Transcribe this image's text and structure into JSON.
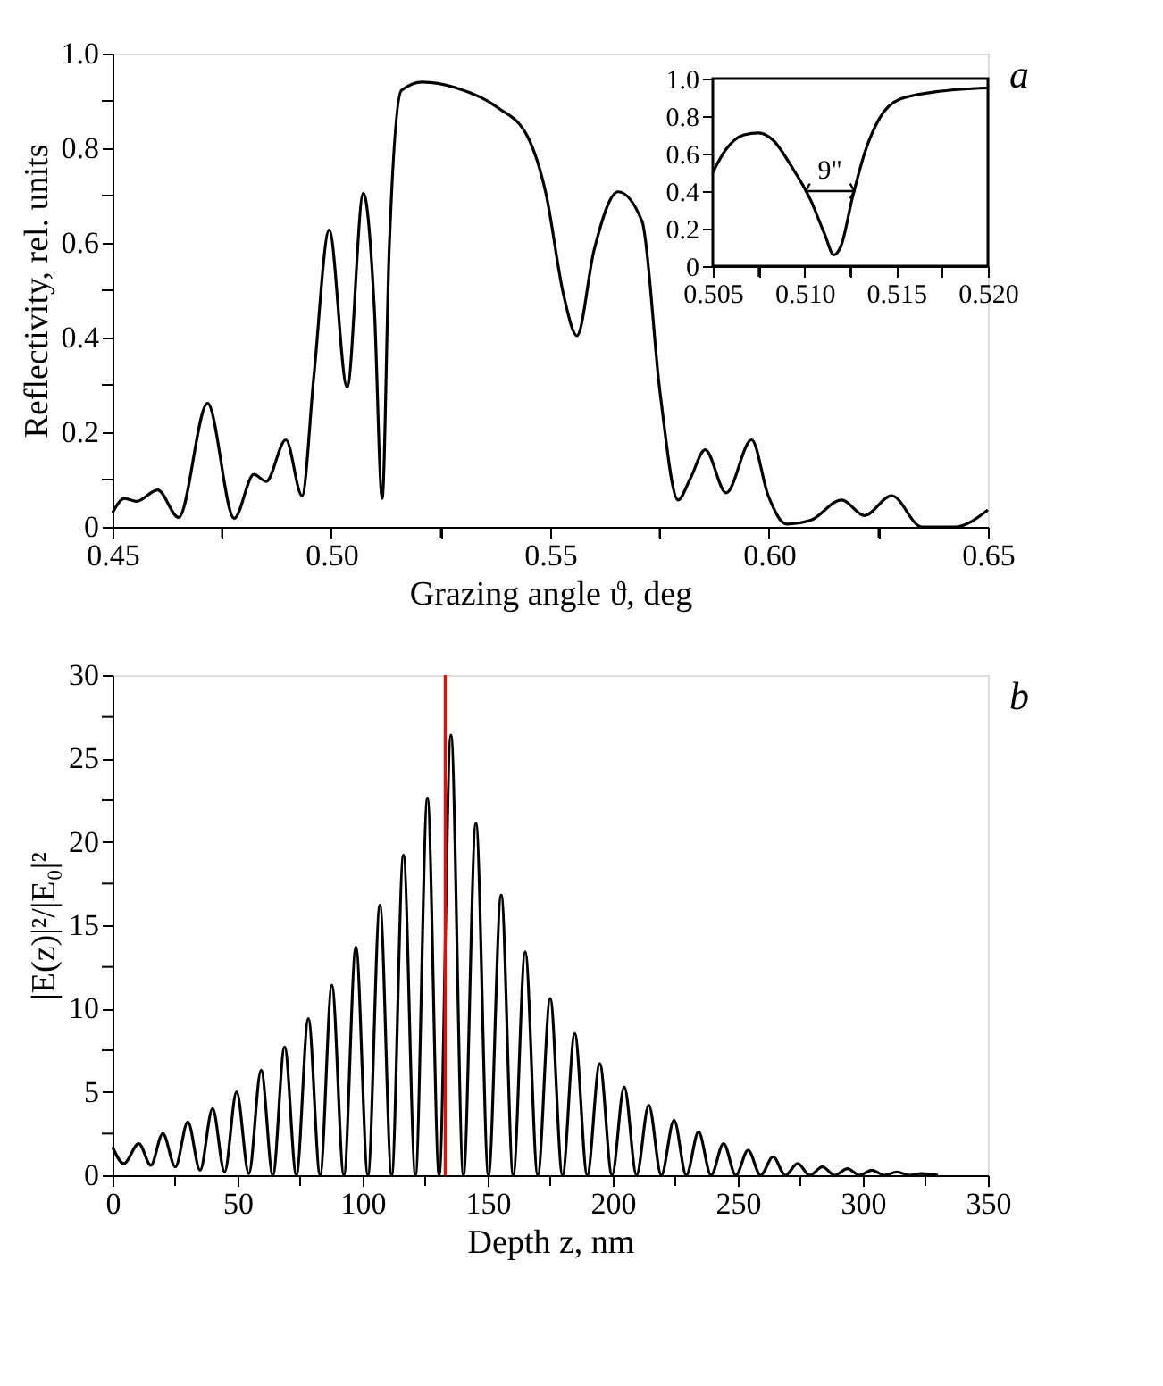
{
  "chart_data": [
    {
      "type": "line",
      "xlabel": "Grazing angle ϑ, deg",
      "ylabel": "Reflectivity, rel. units",
      "annotations": [
        "a"
      ],
      "line_style": "solid",
      "xlim": [
        0.45,
        0.65
      ],
      "xticks": [
        0.45,
        {
          "value": 0.475,
          "label": null
        },
        {
          "value": 0.5,
          "label": "0.50"
        },
        {
          "value": 0.525,
          "label": null
        },
        0.55,
        {
          "value": 0.575,
          "label": null
        },
        {
          "value": 0.6,
          "label": "0.60"
        },
        {
          "value": 0.625,
          "label": null
        },
        0.65
      ],
      "ylim": [
        0,
        1
      ],
      "yticks": [
        0,
        {
          "value": 0.1,
          "label": null
        },
        0.2,
        {
          "value": 0.3,
          "label": null
        },
        0.4,
        {
          "value": 0.5,
          "label": null
        },
        0.6,
        {
          "value": 0.7,
          "label": null
        },
        0.8,
        {
          "value": 0.9,
          "label": null
        },
        {
          "value": 1,
          "label": "1.0"
        }
      ],
      "series": [
        {
          "color": "#000000",
          "x": [
            0.45,
            0.4527,
            0.4555,
            0.4603,
            0.4651,
            0.4717,
            0.4778,
            0.4823,
            0.4851,
            0.4896,
            0.4933,
            0.496,
            0.4995,
            0.5036,
            0.5073,
            0.5098,
            0.5116,
            0.5132,
            0.516,
            0.5208,
            0.5284,
            0.538,
            0.5448,
            0.549,
            0.5531,
            0.5561,
            0.56,
            0.5655,
            0.571,
            0.5751,
            0.5792,
            0.582,
            0.5854,
            0.5902,
            0.596,
            0.5998,
            0.604,
            0.6095,
            0.6166,
            0.6218,
            0.628,
            0.6349,
            0.6424,
            0.65
          ],
          "values": [
            0.03,
            0.06,
            0.054,
            0.078,
            0.02,
            0.261,
            0.018,
            0.111,
            0.096,
            0.184,
            0.066,
            0.319,
            0.627,
            0.295,
            0.705,
            0.464,
            0.06,
            0.584,
            0.922,
            0.94,
            0.928,
            0.886,
            0.825,
            0.705,
            0.488,
            0.404,
            0.584,
            0.708,
            0.645,
            0.283,
            0.057,
            0.102,
            0.163,
            0.072,
            0.184,
            0.066,
            0.006,
            0.014,
            0.057,
            0.024,
            0.066,
            0.0,
            0.0,
            0.036
          ]
        }
      ]
    },
    {
      "type": "line",
      "annotations": [
        "9\""
      ],
      "line_style": "solid",
      "xlim": [
        0.505,
        0.52
      ],
      "xticks": [
        0.505,
        {
          "value": 0.5075,
          "label": null
        },
        {
          "value": 0.51,
          "label": "0.510"
        },
        {
          "value": 0.5125,
          "label": null
        },
        0.515,
        {
          "value": 0.5175,
          "label": null
        },
        {
          "value": 0.52,
          "label": "0.520"
        }
      ],
      "ylim": [
        0,
        1
      ],
      "yticks": [
        0,
        0.2,
        0.4,
        0.6,
        0.8,
        {
          "value": 1,
          "label": "1.0"
        }
      ],
      "series": [
        {
          "color": "#000000",
          "x": [
            0.505,
            0.5057,
            0.5067,
            0.5075,
            0.5083,
            0.5093,
            0.5103,
            0.5111,
            0.5116,
            0.512,
            0.5126,
            0.5133,
            0.5141,
            0.5152,
            0.5172,
            0.52
          ],
          "values": [
            0.5,
            0.62,
            0.7,
            0.71,
            0.67,
            0.53,
            0.36,
            0.17,
            0.06,
            0.11,
            0.36,
            0.61,
            0.79,
            0.89,
            0.93,
            0.95
          ]
        }
      ]
    },
    {
      "type": "line",
      "xlabel": "Depth z, nm",
      "ylabel": "|E(z)|²/|E₀|²",
      "annotations": [
        "b"
      ],
      "line_style": "solid",
      "xlim": [
        0,
        350
      ],
      "xticks": [
        0,
        {
          "value": 25,
          "label": null
        },
        50,
        {
          "value": 75,
          "label": null
        },
        100,
        {
          "value": 125,
          "label": null
        },
        150,
        {
          "value": 175,
          "label": null
        },
        200,
        {
          "value": 225,
          "label": null
        },
        250,
        {
          "value": 275,
          "label": null
        },
        300,
        {
          "value": 325,
          "label": null
        },
        350
      ],
      "ylim": [
        0,
        30
      ],
      "yticks": [
        0,
        {
          "value": 2.5,
          "label": null
        },
        5,
        {
          "value": 7.5,
          "label": null
        },
        10,
        {
          "value": 12.5,
          "label": null
        },
        15,
        {
          "value": 17.5,
          "label": null
        },
        20,
        {
          "value": 22.5,
          "label": null
        },
        25,
        {
          "value": 27.5,
          "label": null
        },
        30
      ],
      "ref_lines": [
        {
          "axis": "x",
          "value": 133,
          "color": "#ff0000"
        }
      ],
      "series": [
        {
          "color": "#000000",
          "x": [
            0,
            4.5,
            10.5,
            15.3,
            20.1,
            25.1,
            30.1,
            35,
            40,
            44.8,
            49.6,
            54.5,
            59.4,
            64.1,
            68.8,
            73.5,
            78.3,
            83,
            87.7,
            92.5,
            97.3,
            102.1,
            106.9,
            111.6,
            116.3,
            121.1,
            125.9,
            130.6,
            135.3,
            140.3,
            145.3,
            150.3,
            155.4,
            160.2,
            165,
            170,
            175,
            179.9,
            184.8,
            189.8,
            194.8,
            199.7,
            204.6,
            209.5,
            214.4,
            219.4,
            224.5,
            229.4,
            234.3,
            239.3,
            244.3,
            249.2,
            254.1,
            259.1,
            264.1,
            269,
            273.9,
            278.8,
            283.8,
            288.8,
            293.8,
            298.7,
            303.6,
            308.6,
            313.6,
            318.5,
            323.4,
            330
          ],
          "values": [
            1.7,
            0.7,
            1.9,
            0.6,
            2.5,
            0.5,
            3.2,
            0.3,
            4.0,
            0.2,
            5.0,
            0.1,
            6.3,
            0,
            7.7,
            0,
            9.4,
            0,
            11.4,
            0,
            13.7,
            0,
            16.2,
            0,
            19.2,
            0,
            22.6,
            0,
            26.4,
            0,
            21.1,
            0,
            16.8,
            0,
            13.4,
            0,
            10.6,
            0,
            8.5,
            0,
            6.7,
            0,
            5.3,
            0,
            4.2,
            0,
            3.3,
            0,
            2.6,
            0,
            1.9,
            0,
            1.5,
            0,
            1.1,
            0,
            0.7,
            0,
            0.5,
            0,
            0.4,
            0,
            0.3,
            0,
            0.2,
            0,
            0.1,
            0
          ]
        }
      ]
    }
  ]
}
